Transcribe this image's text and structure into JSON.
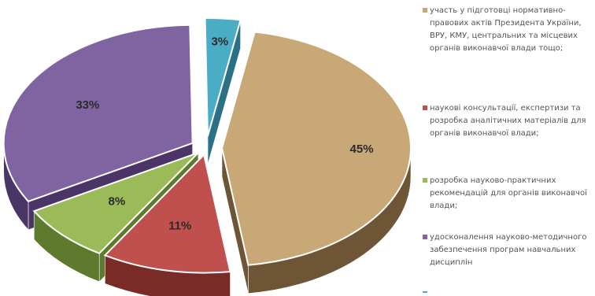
{
  "chart_data": {
    "type": "pie",
    "style": "3d-exploded",
    "title": "",
    "slices": [
      {
        "label": "участь у підготовці нормативно-правових актів Президента України, ВРУ, КМУ, центральних та місцевих органів виконавчої влади тощо;",
        "value": 45,
        "display": "45%",
        "color": "#c9a877",
        "side_color": "#6e5536"
      },
      {
        "label": "науковi консультації, експертизи та розробка аналітичних матеріалів для органів виконавчої влади;",
        "value": 11,
        "display": "11%",
        "color": "#c0504d",
        "side_color": "#7a2b28"
      },
      {
        "label": "розробка науково-практичних рекомендацій для органів виконавчої влади;",
        "value": 8,
        "display": "8%",
        "color": "#9bbb59",
        "side_color": "#5e7a2f"
      },
      {
        "label": "удосконалення науково-методичного забезпечення програм навчальних дисциплін",
        "value": 33,
        "display": "33%",
        "color": "#8064a2",
        "side_color": "#4b3566"
      },
      {
        "label": "",
        "value": 3,
        "display": "3%",
        "color": "#4bacc6",
        "side_color": "#2a7186"
      }
    ],
    "legend_position": "right"
  }
}
